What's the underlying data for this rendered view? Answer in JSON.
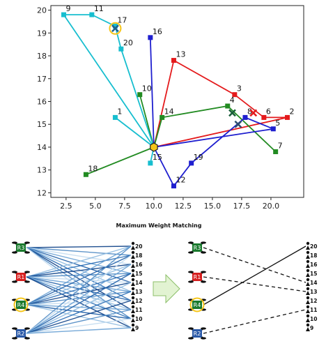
{
  "chart_data": {
    "type": "scatter",
    "xlim": [
      1.2,
      22.8
    ],
    "ylim": [
      11.8,
      20.2
    ],
    "xticks": [
      "2.5",
      "5.0",
      "7.5",
      "10.0",
      "12.5",
      "15.0",
      "17.5",
      "20.0"
    ],
    "yticks": [
      "12",
      "13",
      "14",
      "15",
      "16",
      "17",
      "18",
      "19",
      "20"
    ],
    "grid": false,
    "hub": {
      "x": 10.0,
      "y": 14.0,
      "color": "#f5c518"
    },
    "points": [
      {
        "label": "1",
        "x": 6.7,
        "y": 15.3,
        "color": "#17becf"
      },
      {
        "label": "2",
        "x": 21.4,
        "y": 15.3,
        "color": "#e41a1c"
      },
      {
        "label": "3",
        "x": 16.9,
        "y": 16.3,
        "color": "#e41a1c"
      },
      {
        "label": "4",
        "x": 16.3,
        "y": 15.8,
        "color": "#228b22"
      },
      {
        "label": "5",
        "x": 20.2,
        "y": 14.8,
        "color": "#1f1fcf"
      },
      {
        "label": "6",
        "x": 19.4,
        "y": 15.3,
        "color": "#e41a1c"
      },
      {
        "label": "7",
        "x": 20.4,
        "y": 13.8,
        "color": "#228b22"
      },
      {
        "label": "8",
        "x": 17.8,
        "y": 15.3,
        "color": "#1f1fcf"
      },
      {
        "label": "9",
        "x": 2.3,
        "y": 19.8,
        "color": "#17becf"
      },
      {
        "label": "10",
        "x": 8.8,
        "y": 16.3,
        "color": "#228b22"
      },
      {
        "label": "11",
        "x": 4.7,
        "y": 19.8,
        "color": "#17becf"
      },
      {
        "label": "12",
        "x": 11.7,
        "y": 12.3,
        "color": "#1f1fcf"
      },
      {
        "label": "13",
        "x": 11.7,
        "y": 17.8,
        "color": "#e41a1c"
      },
      {
        "label": "14",
        "x": 10.7,
        "y": 15.3,
        "color": "#228b22"
      },
      {
        "label": "15",
        "x": 9.7,
        "y": 13.3,
        "color": "#17becf"
      },
      {
        "label": "16",
        "x": 9.7,
        "y": 18.8,
        "color": "#1f1fcf"
      },
      {
        "label": "17",
        "x": 6.7,
        "y": 19.3,
        "color": "#17becf"
      },
      {
        "label": "18",
        "x": 4.2,
        "y": 12.8,
        "color": "#228b22"
      },
      {
        "label": "19",
        "x": 13.2,
        "y": 13.3,
        "color": "#1f1fcf"
      },
      {
        "label": "20",
        "x": 7.2,
        "y": 18.3,
        "color": "#17becf"
      }
    ],
    "routes": [
      {
        "color": "#e41a1c",
        "path": [
          [
            10.0,
            14.0
          ],
          [
            21.4,
            15.3
          ],
          [
            19.4,
            15.3
          ],
          [
            16.9,
            16.3
          ],
          [
            11.7,
            17.8
          ],
          [
            10.0,
            14.0
          ]
        ]
      },
      {
        "color": "#228b22",
        "path": [
          [
            10.0,
            14.0
          ],
          [
            4.2,
            12.8
          ]
        ]
      },
      {
        "color": "#228b22",
        "path": [
          [
            10.0,
            14.0
          ],
          [
            8.8,
            16.3
          ]
        ]
      },
      {
        "color": "#228b22",
        "path": [
          [
            10.0,
            14.0
          ],
          [
            10.7,
            15.3
          ],
          [
            16.3,
            15.8
          ],
          [
            20.4,
            13.8
          ]
        ]
      },
      {
        "color": "#17becf",
        "path": [
          [
            10.0,
            14.0
          ],
          [
            2.3,
            19.8
          ],
          [
            4.7,
            19.8
          ],
          [
            6.7,
            19.3
          ],
          [
            7.2,
            18.3
          ],
          [
            10.0,
            14.0
          ]
        ]
      },
      {
        "color": "#17becf",
        "path": [
          [
            10.0,
            14.0
          ],
          [
            6.7,
            15.3
          ]
        ]
      },
      {
        "color": "#17becf",
        "path": [
          [
            10.0,
            14.0
          ],
          [
            9.7,
            13.3
          ]
        ]
      },
      {
        "color": "#1f1fcf",
        "path": [
          [
            10.0,
            14.0
          ],
          [
            9.7,
            18.8
          ]
        ]
      },
      {
        "color": "#1f1fcf",
        "path": [
          [
            10.0,
            14.0
          ],
          [
            11.7,
            12.3
          ],
          [
            13.2,
            13.3
          ],
          [
            17.8,
            15.3
          ],
          [
            20.2,
            14.8
          ],
          [
            10.0,
            14.0
          ]
        ]
      }
    ],
    "crosses": [
      {
        "x": 6.7,
        "y": 19.2,
        "color": "#1f5f8b",
        "ring": "#f5c518"
      },
      {
        "x": 18.5,
        "y": 15.5,
        "color": "#e41a1c"
      },
      {
        "x": 16.7,
        "y": 15.5,
        "color": "#1a5e3a"
      },
      {
        "x": 17.2,
        "y": 15.0,
        "color": "#2f4f6f"
      }
    ]
  },
  "matching": {
    "title": "Maximum Weight Matching",
    "robots": [
      {
        "label": "R3",
        "color": "#1a7a2e"
      },
      {
        "label": "R1",
        "color": "#d61f1f"
      },
      {
        "label": "R4",
        "color": "#1a7a2e",
        "ring": "#f5c518"
      },
      {
        "label": "R2",
        "color": "#2b5aa8"
      }
    ],
    "users": [
      "20",
      "18",
      "16",
      "15",
      "14",
      "13",
      "12",
      "11",
      "10",
      "9"
    ],
    "arrow_color": "#e2f3d2",
    "result_edges": [
      {
        "robot": 0,
        "user": 4,
        "style": "dashed"
      },
      {
        "robot": 1,
        "user": 5,
        "style": "dashed"
      },
      {
        "robot": 2,
        "user": 0,
        "style": "solid"
      },
      {
        "robot": 3,
        "user": 7,
        "style": "dashed"
      }
    ]
  }
}
